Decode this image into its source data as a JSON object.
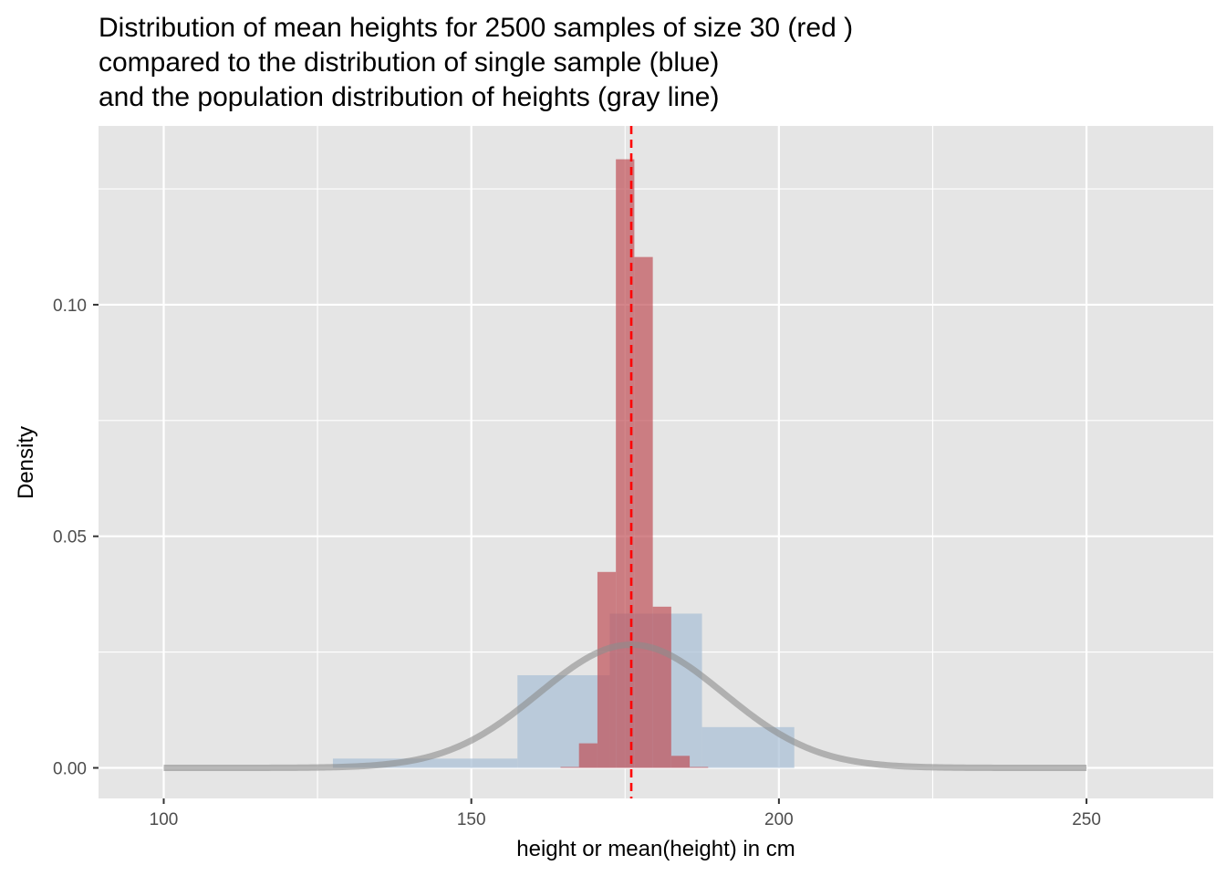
{
  "chart_data": {
    "type": "bar",
    "title": [
      "Distribution of mean heights for 2500 samples of size 30 (red )",
      "compared to the distribution of  single sample (blue)",
      "and the population distribution of heights (gray line)"
    ],
    "xlabel": "height or mean(height) in cm",
    "ylabel": "Density",
    "xlim": [
      89.4,
      270.6
    ],
    "ylim": [
      -0.0066,
      0.1386
    ],
    "x_ticks": [
      {
        "value": 100,
        "label": "100"
      },
      {
        "value": 150,
        "label": "150"
      },
      {
        "value": 200,
        "label": "200"
      },
      {
        "value": 250,
        "label": "250"
      }
    ],
    "y_ticks": [
      {
        "value": 0.0,
        "label": "0.00"
      },
      {
        "value": 0.05,
        "label": "0.05"
      },
      {
        "value": 0.1,
        "label": "0.10"
      }
    ],
    "grid": true,
    "legend": "none",
    "series": [
      {
        "kind": "histogram",
        "bins": [
          {
            "x0": 127.5,
            "x1": 157.5,
            "density": 0.002
          },
          {
            "x0": 157.5,
            "x1": 172.5,
            "density": 0.02
          },
          {
            "x0": 172.5,
            "x1": 187.5,
            "density": 0.0333
          },
          {
            "x0": 187.5,
            "x1": 202.5,
            "density": 0.0088
          }
        ]
      },
      {
        "kind": "histogram",
        "bins": [
          {
            "x0": 164.5,
            "x1": 167.5,
            "density": 0.0002
          },
          {
            "x0": 167.5,
            "x1": 170.5,
            "density": 0.0053
          },
          {
            "x0": 170.5,
            "x1": 173.5,
            "density": 0.0423
          },
          {
            "x0": 173.5,
            "x1": 176.5,
            "density": 0.1314
          },
          {
            "x0": 176.5,
            "x1": 179.5,
            "density": 0.1103
          },
          {
            "x0": 179.5,
            "x1": 182.5,
            "density": 0.0348
          },
          {
            "x0": 182.5,
            "x1": 185.5,
            "density": 0.0026
          },
          {
            "x0": 185.5,
            "x1": 188.5,
            "density": 0.0002
          }
        ]
      },
      {
        "kind": "normal-density-curve",
        "mean": 176,
        "sd": 15,
        "x_range": [
          100,
          250
        ]
      },
      {
        "kind": "vertical-dashed-line",
        "x": 176
      }
    ],
    "colors": {
      "panel_bg": "#e5e5e5",
      "grid_line": "#ffffff",
      "single_sample_fill": "#a9bfd6",
      "sample_means_fill": "#c05158",
      "population_curve": "#8c8c8c",
      "mean_line": "#ff0000"
    }
  }
}
